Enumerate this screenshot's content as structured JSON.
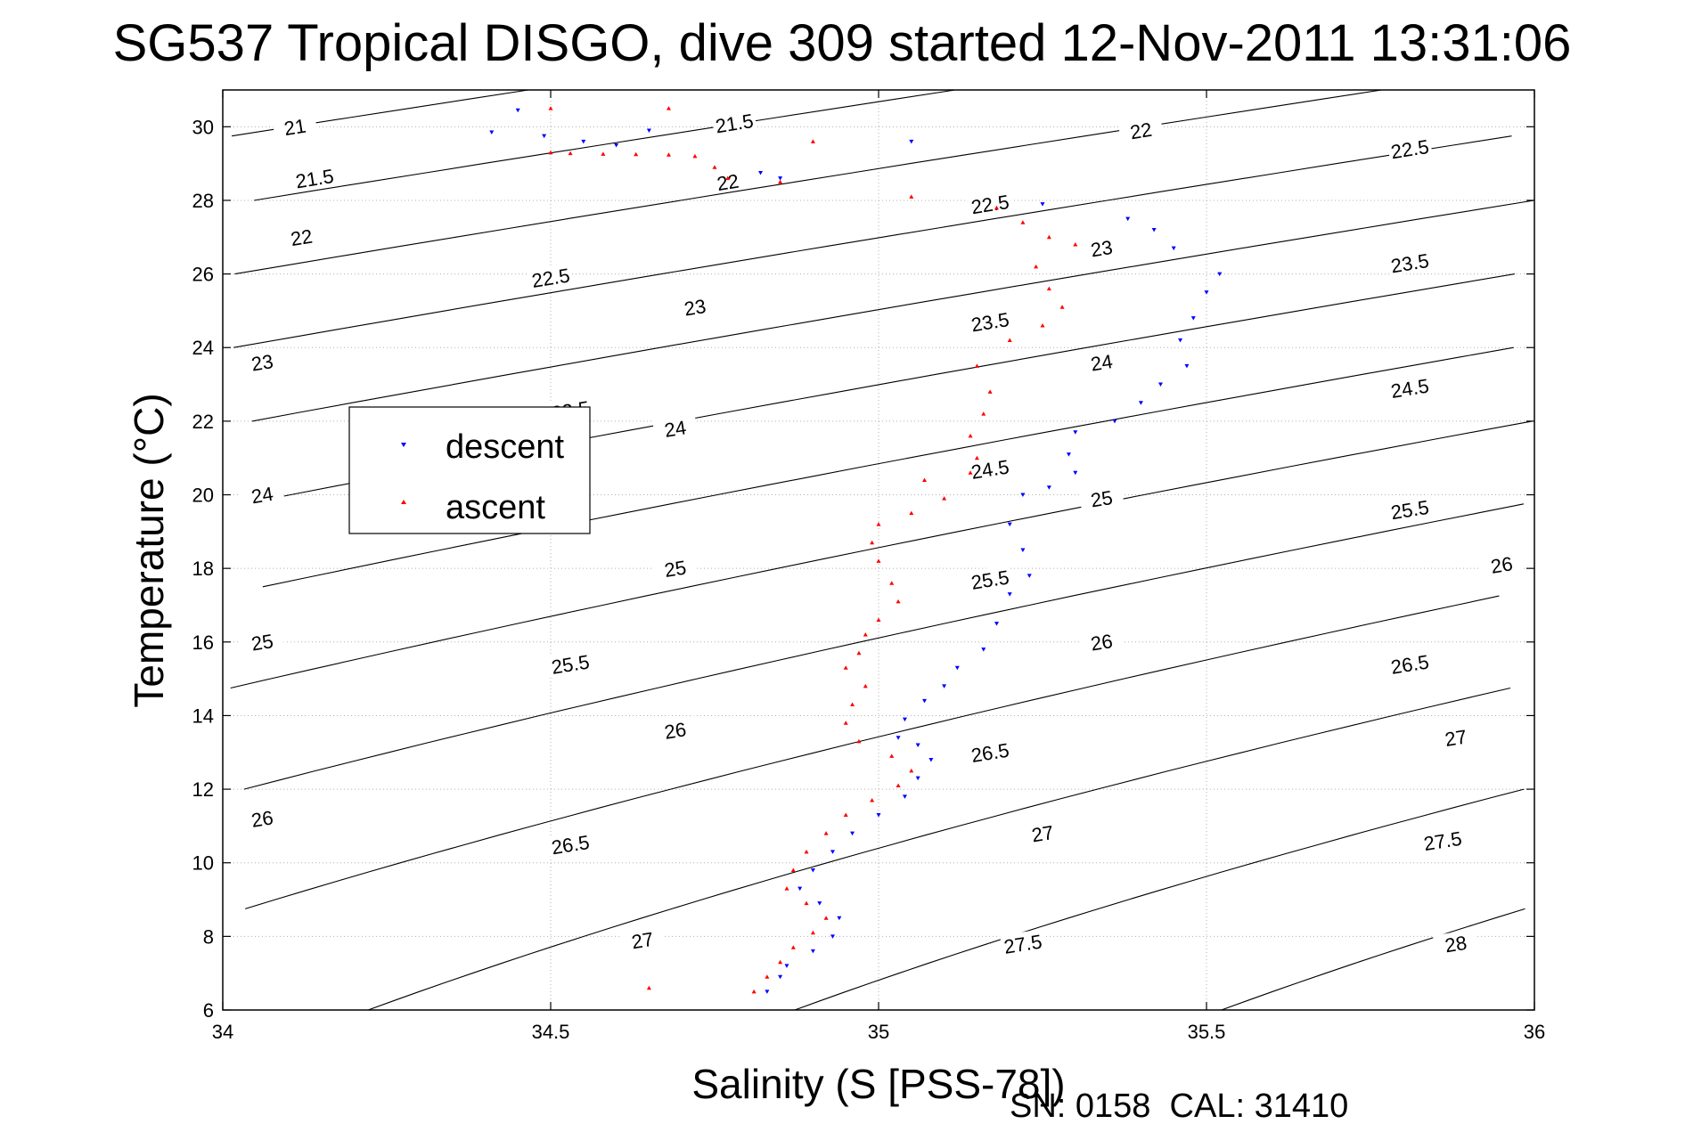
{
  "chart_data": {
    "type": "scatter",
    "title": "SG537 Tropical DISGO, dive 309 started 12-Nov-2011 13:31:06",
    "xlabel": "Salinity (S [PSS-78])",
    "ylabel": "Temperature (°C)",
    "xlim": [
      34,
      36
    ],
    "ylim": [
      6,
      31
    ],
    "x_ticks": [
      34,
      34.5,
      35,
      35.5,
      36
    ],
    "x_tick_labels": [
      "34",
      "34.5",
      "35",
      "35.5",
      "36"
    ],
    "y_ticks": [
      6,
      8,
      10,
      12,
      14,
      16,
      18,
      20,
      22,
      24,
      26,
      28,
      30
    ],
    "y_tick_labels": [
      "6",
      "8",
      "10",
      "12",
      "14",
      "16",
      "18",
      "20",
      "22",
      "24",
      "26",
      "28",
      "30"
    ],
    "grid": true,
    "legend": {
      "placement": "left",
      "entries": [
        "descent",
        "ascent"
      ]
    },
    "footer": "SN: 0158  CAL: 31410",
    "density_contours": {
      "levels": [
        21,
        21.5,
        22,
        22.5,
        23,
        23.5,
        24,
        24.5,
        25,
        25.5,
        26,
        26.5,
        27,
        27.5,
        28
      ],
      "labels": [
        {
          "text": "21",
          "s": 34.11,
          "t": 30.0
        },
        {
          "text": "21.5",
          "s": 34.14,
          "t": 28.6
        },
        {
          "text": "21.5",
          "s": 34.78,
          "t": 30.1
        },
        {
          "text": "22",
          "s": 34.12,
          "t": 27.0
        },
        {
          "text": "22",
          "s": 34.77,
          "t": 28.5
        },
        {
          "text": "22",
          "s": 35.4,
          "t": 29.9
        },
        {
          "text": "22.5",
          "s": 34.5,
          "t": 25.9
        },
        {
          "text": "22.5",
          "s": 35.17,
          "t": 27.9
        },
        {
          "text": "22.5",
          "s": 35.81,
          "t": 29.4
        },
        {
          "text": "23",
          "s": 34.06,
          "t": 23.6
        },
        {
          "text": "23",
          "s": 34.72,
          "t": 25.1
        },
        {
          "text": "23",
          "s": 35.34,
          "t": 26.7
        },
        {
          "text": "23.5",
          "s": 34.53,
          "t": 22.3
        },
        {
          "text": "23.5",
          "s": 35.17,
          "t": 24.7
        },
        {
          "text": "23.5",
          "s": 35.81,
          "t": 26.3
        },
        {
          "text": "24",
          "s": 34.06,
          "t": 20.0
        },
        {
          "text": "24",
          "s": 34.69,
          "t": 21.8
        },
        {
          "text": "24",
          "s": 35.34,
          "t": 23.6
        },
        {
          "text": "24.5",
          "s": 35.17,
          "t": 20.7
        },
        {
          "text": "24.5",
          "s": 35.81,
          "t": 22.9
        },
        {
          "text": "25",
          "s": 34.06,
          "t": 16.0
        },
        {
          "text": "25",
          "s": 34.69,
          "t": 18.0
        },
        {
          "text": "25",
          "s": 35.34,
          "t": 19.9
        },
        {
          "text": "25.5",
          "s": 34.53,
          "t": 15.4
        },
        {
          "text": "25.5",
          "s": 35.17,
          "t": 17.7
        },
        {
          "text": "25.5",
          "s": 35.81,
          "t": 19.6
        },
        {
          "text": "26",
          "s": 34.06,
          "t": 11.2
        },
        {
          "text": "26",
          "s": 34.69,
          "t": 13.6
        },
        {
          "text": "26",
          "s": 35.34,
          "t": 16.0
        },
        {
          "text": "26",
          "s": 35.95,
          "t": 18.1
        },
        {
          "text": "26.5",
          "s": 34.53,
          "t": 10.5
        },
        {
          "text": "26.5",
          "s": 35.17,
          "t": 13.0
        },
        {
          "text": "26.5",
          "s": 35.81,
          "t": 15.4
        },
        {
          "text": "27",
          "s": 34.64,
          "t": 7.9
        },
        {
          "text": "27",
          "s": 35.25,
          "t": 10.8
        },
        {
          "text": "27",
          "s": 35.88,
          "t": 13.4
        },
        {
          "text": "27.5",
          "s": 35.22,
          "t": 7.8
        },
        {
          "text": "27.5",
          "s": 35.86,
          "t": 10.6
        },
        {
          "text": "28",
          "s": 35.88,
          "t": 7.8
        }
      ]
    },
    "series": [
      {
        "name": "descent",
        "color": "#0000ff",
        "marker": "triangle-down",
        "points": [
          [
            34.45,
            30.45
          ],
          [
            34.41,
            29.85
          ],
          [
            34.49,
            29.75
          ],
          [
            34.55,
            29.6
          ],
          [
            34.6,
            29.5
          ],
          [
            34.65,
            29.9
          ],
          [
            34.82,
            28.75
          ],
          [
            34.85,
            28.6
          ],
          [
            35.05,
            29.6
          ],
          [
            35.25,
            27.9
          ],
          [
            35.38,
            27.5
          ],
          [
            35.42,
            27.2
          ],
          [
            35.45,
            26.7
          ],
          [
            35.52,
            26.0
          ],
          [
            35.5,
            25.5
          ],
          [
            35.48,
            24.8
          ],
          [
            35.46,
            24.2
          ],
          [
            35.47,
            23.5
          ],
          [
            35.43,
            23.0
          ],
          [
            35.4,
            22.5
          ],
          [
            35.36,
            22.0
          ],
          [
            35.3,
            21.7
          ],
          [
            35.29,
            21.1
          ],
          [
            35.3,
            20.6
          ],
          [
            35.26,
            20.2
          ],
          [
            35.22,
            20.0
          ],
          [
            35.2,
            19.2
          ],
          [
            35.22,
            18.5
          ],
          [
            35.23,
            17.8
          ],
          [
            35.2,
            17.3
          ],
          [
            35.18,
            16.5
          ],
          [
            35.16,
            15.8
          ],
          [
            35.12,
            15.3
          ],
          [
            35.1,
            14.8
          ],
          [
            35.07,
            14.4
          ],
          [
            35.04,
            13.9
          ],
          [
            35.03,
            13.4
          ],
          [
            35.06,
            13.2
          ],
          [
            35.08,
            12.8
          ],
          [
            35.06,
            12.3
          ],
          [
            35.04,
            11.8
          ],
          [
            35.0,
            11.3
          ],
          [
            34.96,
            10.8
          ],
          [
            34.93,
            10.3
          ],
          [
            34.9,
            9.8
          ],
          [
            34.88,
            9.3
          ],
          [
            34.91,
            8.9
          ],
          [
            34.94,
            8.5
          ],
          [
            34.93,
            8.0
          ],
          [
            34.9,
            7.6
          ],
          [
            34.86,
            7.2
          ],
          [
            34.85,
            6.9
          ],
          [
            34.83,
            6.5
          ]
        ]
      },
      {
        "name": "ascent",
        "color": "#ff0000",
        "marker": "triangle-up",
        "points": [
          [
            34.5,
            30.5
          ],
          [
            34.68,
            30.5
          ],
          [
            34.5,
            29.3
          ],
          [
            34.53,
            29.28
          ],
          [
            34.58,
            29.26
          ],
          [
            34.63,
            29.25
          ],
          [
            34.68,
            29.24
          ],
          [
            34.72,
            29.2
          ],
          [
            34.75,
            28.9
          ],
          [
            34.77,
            28.6
          ],
          [
            34.85,
            28.5
          ],
          [
            34.9,
            29.6
          ],
          [
            35.05,
            28.1
          ],
          [
            35.18,
            27.8
          ],
          [
            35.22,
            27.4
          ],
          [
            35.26,
            27.0
          ],
          [
            35.3,
            26.8
          ],
          [
            35.24,
            26.2
          ],
          [
            35.26,
            25.6
          ],
          [
            35.28,
            25.1
          ],
          [
            35.25,
            24.6
          ],
          [
            35.2,
            24.2
          ],
          [
            35.15,
            23.5
          ],
          [
            35.17,
            22.8
          ],
          [
            35.16,
            22.2
          ],
          [
            35.14,
            21.6
          ],
          [
            35.15,
            21.0
          ],
          [
            35.14,
            20.6
          ],
          [
            35.07,
            20.4
          ],
          [
            35.1,
            19.9
          ],
          [
            35.05,
            19.5
          ],
          [
            35.0,
            19.2
          ],
          [
            34.99,
            18.7
          ],
          [
            35.0,
            18.2
          ],
          [
            35.02,
            17.6
          ],
          [
            35.03,
            17.1
          ],
          [
            35.0,
            16.6
          ],
          [
            34.98,
            16.2
          ],
          [
            34.97,
            15.7
          ],
          [
            34.95,
            15.3
          ],
          [
            34.98,
            14.8
          ],
          [
            34.96,
            14.3
          ],
          [
            34.95,
            13.8
          ],
          [
            34.97,
            13.3
          ],
          [
            35.02,
            12.9
          ],
          [
            35.05,
            12.5
          ],
          [
            35.03,
            12.1
          ],
          [
            34.99,
            11.7
          ],
          [
            34.95,
            11.3
          ],
          [
            34.92,
            10.8
          ],
          [
            34.89,
            10.3
          ],
          [
            34.87,
            9.8
          ],
          [
            34.86,
            9.3
          ],
          [
            34.89,
            8.9
          ],
          [
            34.92,
            8.5
          ],
          [
            34.9,
            8.1
          ],
          [
            34.87,
            7.7
          ],
          [
            34.85,
            7.3
          ],
          [
            34.83,
            6.9
          ],
          [
            34.81,
            6.5
          ],
          [
            34.65,
            6.6
          ]
        ]
      }
    ]
  }
}
